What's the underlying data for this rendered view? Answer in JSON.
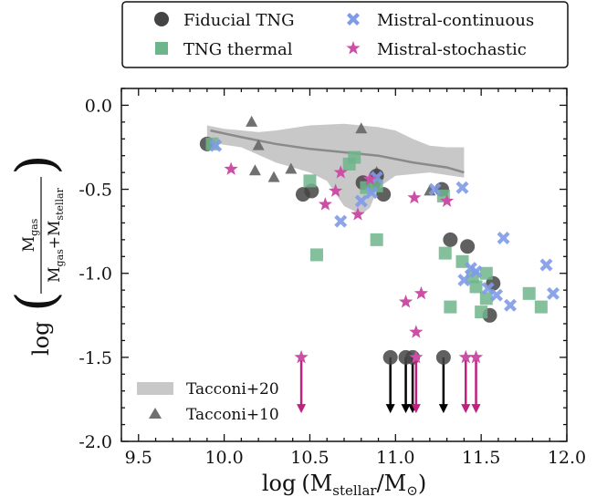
{
  "chart_data": {
    "type": "scatter",
    "xlabel": "log (M_stellar/M_⊙)",
    "ylabel": "log ( M_gas / (M_gas + M_stellar) )",
    "xlim": [
      9.4,
      12.0
    ],
    "ylim": [
      -2.0,
      0.1
    ],
    "x_ticks": [
      "9.5",
      "10.0",
      "10.5",
      "11.0",
      "11.5",
      "12.0"
    ],
    "y_ticks": [
      "0.0",
      "-0.5",
      "-1.0",
      "-1.5",
      "-2.0"
    ],
    "grid": false,
    "legend_position": "top, outside plot",
    "colors": {
      "fiducial": "#444444",
      "thermal": "#6db58a",
      "continuous": "#7f9be8",
      "stochastic": "#cc4fa6",
      "tacconi_band": "#c8c8c8",
      "tacconi_line": "#8a8a8a",
      "tacconi10": "#707070",
      "arrow_black": "#000000",
      "arrow_magenta": "#c0207e"
    },
    "legend": [
      {
        "key": "fiducial",
        "label": "Fiducial TNG",
        "marker": "circle"
      },
      {
        "key": "continuous",
        "label": "Mistral-continuous",
        "marker": "cross"
      },
      {
        "key": "thermal",
        "label": "TNG thermal",
        "marker": "square"
      },
      {
        "key": "stochastic",
        "label": "Mistral-stochastic",
        "marker": "star"
      }
    ],
    "inset_legend": [
      {
        "key": "tacconi20",
        "label": "Tacconi+20",
        "marker": "band"
      },
      {
        "key": "tacconi10",
        "label": "Tacconi+10",
        "marker": "triangle"
      }
    ],
    "series": [
      {
        "key": "fiducial",
        "name": "Fiducial TNG",
        "marker": "circle",
        "points": [
          [
            9.9,
            -0.23
          ],
          [
            10.46,
            -0.53
          ],
          [
            10.51,
            -0.51
          ],
          [
            10.81,
            -0.46
          ],
          [
            10.87,
            -0.47
          ],
          [
            10.89,
            -0.42
          ],
          [
            10.93,
            -0.53
          ],
          [
            11.27,
            -0.5
          ],
          [
            11.32,
            -0.8
          ],
          [
            11.42,
            -0.84
          ],
          [
            11.55,
            -1.25
          ],
          [
            11.57,
            -1.06
          ]
        ]
      },
      {
        "key": "thermal",
        "name": "TNG thermal",
        "marker": "square",
        "points": [
          [
            9.93,
            -0.23
          ],
          [
            10.5,
            -0.45
          ],
          [
            10.54,
            -0.89
          ],
          [
            10.73,
            -0.35
          ],
          [
            10.76,
            -0.31
          ],
          [
            10.83,
            -0.49
          ],
          [
            10.89,
            -0.8
          ],
          [
            10.89,
            -0.48
          ],
          [
            11.28,
            -0.54
          ],
          [
            11.29,
            -0.88
          ],
          [
            11.32,
            -1.2
          ],
          [
            11.39,
            -0.93
          ],
          [
            11.45,
            -1.02
          ],
          [
            11.47,
            -1.08
          ],
          [
            11.5,
            -1.23
          ],
          [
            11.53,
            -1.0
          ],
          [
            11.53,
            -1.15
          ],
          [
            11.78,
            -1.12
          ],
          [
            11.85,
            -1.2
          ]
        ]
      },
      {
        "key": "continuous",
        "name": "Mistral-continuous",
        "marker": "cross",
        "points": [
          [
            9.95,
            -0.24
          ],
          [
            10.68,
            -0.69
          ],
          [
            10.8,
            -0.57
          ],
          [
            10.86,
            -0.52
          ],
          [
            10.89,
            -0.43
          ],
          [
            11.23,
            -0.5
          ],
          [
            11.39,
            -0.49
          ],
          [
            11.4,
            -1.04
          ],
          [
            11.44,
            -0.97
          ],
          [
            11.47,
            -0.99
          ],
          [
            11.54,
            -1.09
          ],
          [
            11.59,
            -1.13
          ],
          [
            11.63,
            -0.79
          ],
          [
            11.67,
            -1.19
          ],
          [
            11.88,
            -0.95
          ],
          [
            11.92,
            -1.12
          ]
        ]
      },
      {
        "key": "stochastic",
        "name": "Mistral-stochastic",
        "marker": "star",
        "points": [
          [
            10.04,
            -0.38
          ],
          [
            10.59,
            -0.59
          ],
          [
            10.65,
            -0.51
          ],
          [
            10.68,
            -0.4
          ],
          [
            10.78,
            -0.65
          ],
          [
            10.85,
            -0.44
          ],
          [
            11.06,
            -1.17
          ],
          [
            11.11,
            -0.55
          ],
          [
            11.12,
            -1.35
          ],
          [
            11.15,
            -1.12
          ],
          [
            11.3,
            -0.57
          ]
        ]
      }
    ],
    "upper_limits": [
      {
        "key": "stochastic",
        "x": 10.45,
        "y": -1.5
      },
      {
        "key": "fiducial",
        "x": 10.97,
        "y": -1.5
      },
      {
        "key": "fiducial",
        "x": 11.06,
        "y": -1.5
      },
      {
        "key": "fiducial",
        "x": 11.1,
        "y": -1.5
      },
      {
        "key": "stochastic",
        "x": 11.12,
        "y": -1.5
      },
      {
        "key": "fiducial",
        "x": 11.28,
        "y": -1.5
      },
      {
        "key": "stochastic",
        "x": 11.41,
        "y": -1.5
      },
      {
        "key": "stochastic",
        "x": 11.47,
        "y": -1.5
      }
    ],
    "tacconi10": {
      "name": "Tacconi+10",
      "points": [
        [
          10.16,
          -0.1
        ],
        [
          10.2,
          -0.24
        ],
        [
          10.18,
          -0.39
        ],
        [
          10.29,
          -0.43
        ],
        [
          10.39,
          -0.38
        ],
        [
          10.8,
          -0.14
        ],
        [
          10.89,
          -0.4
        ],
        [
          11.2,
          -0.51
        ]
      ]
    },
    "tacconi20": {
      "name": "Tacconi+20",
      "band_upper": [
        [
          9.9,
          -0.12
        ],
        [
          10.0,
          -0.14
        ],
        [
          10.2,
          -0.16
        ],
        [
          10.3,
          -0.15
        ],
        [
          10.5,
          -0.12
        ],
        [
          10.7,
          -0.11
        ],
        [
          10.9,
          -0.13
        ],
        [
          11.0,
          -0.15
        ],
        [
          11.1,
          -0.2
        ],
        [
          11.2,
          -0.24
        ],
        [
          11.3,
          -0.25
        ],
        [
          11.4,
          -0.25
        ]
      ],
      "band_lower": [
        [
          11.4,
          -0.43
        ],
        [
          11.2,
          -0.4
        ],
        [
          11.0,
          -0.42
        ],
        [
          10.9,
          -0.49
        ],
        [
          10.85,
          -0.61
        ],
        [
          10.8,
          -0.65
        ],
        [
          10.7,
          -0.6
        ],
        [
          10.6,
          -0.45
        ],
        [
          10.5,
          -0.4
        ],
        [
          10.3,
          -0.34
        ],
        [
          10.1,
          -0.25
        ],
        [
          9.9,
          -0.22
        ]
      ],
      "median": [
        [
          9.92,
          -0.15
        ],
        [
          10.1,
          -0.19
        ],
        [
          10.3,
          -0.23
        ],
        [
          10.5,
          -0.26
        ],
        [
          10.7,
          -0.28
        ],
        [
          10.9,
          -0.3
        ],
        [
          11.1,
          -0.34
        ],
        [
          11.3,
          -0.37
        ],
        [
          11.4,
          -0.4
        ]
      ]
    }
  }
}
